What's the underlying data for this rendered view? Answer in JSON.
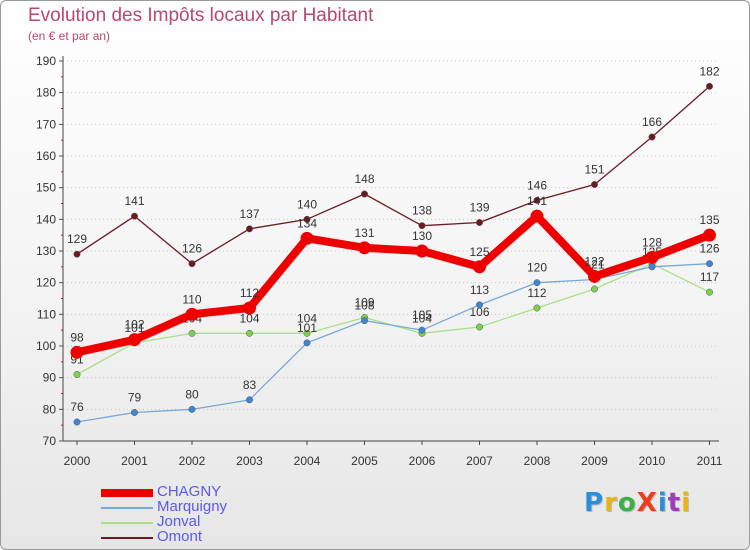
{
  "title": "Evolution des Impôts locaux par Habitant",
  "subtitle": "(en € et par an)",
  "brand": {
    "text": "ProXiti",
    "colors": [
      "#2a8fd8",
      "#e8b41c",
      "#3fae49",
      "#e8401c",
      "#2a8fd8",
      "#9c3fb6",
      "#e8b41c"
    ]
  },
  "chart_data": {
    "type": "line",
    "title": "Evolution des Impôts locaux par Habitant",
    "subtitle": "(en € et par an)",
    "xlabel": "",
    "ylabel": "",
    "categories": [
      "2000",
      "2001",
      "2002",
      "2003",
      "2004",
      "2005",
      "2006",
      "2007",
      "2008",
      "2009",
      "2010",
      "2011"
    ],
    "ylim": [
      70,
      190
    ],
    "yticks": [
      70,
      80,
      90,
      100,
      110,
      120,
      130,
      140,
      150,
      160,
      170,
      180,
      190
    ],
    "grid": "horizontal dotted",
    "legend_position": "bottom-left",
    "series": [
      {
        "name": "Omont",
        "color": "#6b1a22",
        "marker": "#6b1a22",
        "thick": false,
        "values": [
          129,
          141,
          126,
          137,
          140,
          148,
          138,
          139,
          146,
          151,
          166,
          182
        ],
        "labels": [
          "129",
          "141",
          "126",
          "137",
          "140",
          "148",
          "138",
          "139",
          "146",
          "151",
          "166",
          "182"
        ]
      },
      {
        "name": "Jonval",
        "color": "#a8e08a",
        "marker": "#7ed04f",
        "thick": false,
        "values": [
          91,
          101,
          104,
          104,
          104,
          109,
          104,
          106,
          112,
          118,
          126,
          117
        ],
        "labels": [
          "91",
          "101",
          "104",
          "104",
          "104",
          "109",
          "104",
          "106",
          "112",
          "",
          "",
          "117"
        ]
      },
      {
        "name": "Marquigny",
        "color": "#78a8d8",
        "marker": "#3f86d0",
        "thick": false,
        "values": [
          76,
          79,
          80,
          83,
          101,
          108,
          105,
          113,
          120,
          121,
          125,
          126
        ],
        "labels": [
          "76",
          "79",
          "80",
          "83",
          "101",
          "108",
          "105",
          "113",
          "120",
          "121",
          "125",
          "126"
        ]
      },
      {
        "name": "CHAGNY",
        "color": "#ee0000",
        "marker": "#ee0000",
        "thick": true,
        "values": [
          98,
          102,
          110,
          112,
          134,
          131,
          130,
          125,
          141,
          122,
          128,
          135
        ],
        "labels": [
          "98",
          "102",
          "110",
          "112",
          "134",
          "131",
          "130",
          "125",
          "141",
          "122",
          "128",
          "135"
        ]
      }
    ]
  }
}
